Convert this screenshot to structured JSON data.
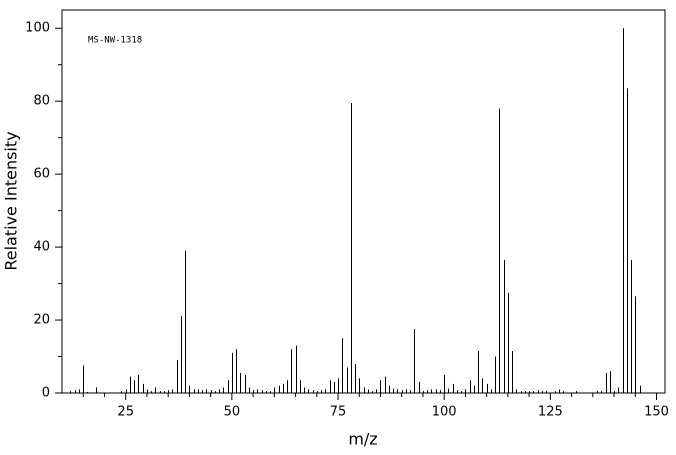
{
  "chart_data": {
    "type": "stem",
    "annotation": "MS-NW-1318",
    "xlabel": "m/z",
    "ylabel": "Relative Intensity",
    "color": "#000000",
    "xlim": [
      10,
      152
    ],
    "ylim": [
      0,
      105
    ],
    "xticks": [
      25,
      50,
      75,
      100,
      125,
      150
    ],
    "xminorticks": [
      15,
      20,
      30,
      35,
      40,
      45,
      55,
      60,
      65,
      70,
      80,
      85,
      90,
      95,
      105,
      110,
      115,
      120,
      130,
      135,
      140,
      145
    ],
    "yticks": [
      0,
      20,
      40,
      60,
      80,
      100
    ],
    "yminorticks": [
      10,
      30,
      50,
      70,
      90
    ],
    "x": [
      12,
      13,
      14,
      15,
      16,
      18,
      24,
      25,
      26,
      27,
      28,
      29,
      30,
      31,
      32,
      33,
      34,
      35,
      36,
      37,
      38,
      39,
      40,
      41,
      42,
      43,
      44,
      45,
      46,
      47,
      48,
      49,
      50,
      51,
      52,
      53,
      54,
      55,
      56,
      57,
      58,
      59,
      60,
      61,
      62,
      63,
      64,
      65,
      66,
      67,
      68,
      69,
      70,
      71,
      72,
      73,
      74,
      75,
      76,
      77,
      78,
      79,
      80,
      81,
      82,
      83,
      84,
      85,
      86,
      87,
      88,
      89,
      90,
      91,
      92,
      93,
      94,
      95,
      96,
      97,
      98,
      99,
      100,
      101,
      102,
      103,
      104,
      105,
      106,
      107,
      108,
      109,
      110,
      111,
      112,
      113,
      114,
      115,
      116,
      117,
      118,
      119,
      120,
      121,
      122,
      123,
      124,
      126,
      127,
      128,
      131,
      136,
      137,
      138,
      139,
      140,
      141,
      142,
      143,
      144,
      145,
      146
    ],
    "values": [
      0.5,
      0.8,
      1,
      7.5,
      0.3,
      1.5,
      0.5,
      1,
      4.5,
      3.5,
      5,
      2.5,
      1,
      0.5,
      1.5,
      0.5,
      0.5,
      0.8,
      1,
      9,
      21,
      39,
      2,
      1,
      1,
      0.8,
      1,
      0.8,
      0.5,
      1,
      1.5,
      3.5,
      11,
      12,
      5.5,
      5,
      1.5,
      0.8,
      1,
      0.8,
      0.5,
      0.5,
      1.5,
      2,
      2.5,
      3.5,
      12,
      13,
      3.5,
      1.5,
      1,
      0.8,
      0.5,
      0.8,
      1,
      3.5,
      3,
      4,
      15,
      7,
      79.5,
      8,
      4,
      1.5,
      1,
      0.5,
      1,
      3.5,
      4.5,
      2,
      1.2,
      1,
      0.8,
      1,
      0.8,
      17.5,
      3,
      0.5,
      0.8,
      1,
      1,
      0.8,
      5,
      1.2,
      2.5,
      0.8,
      0.5,
      1,
      3.5,
      2,
      11.5,
      4,
      2.5,
      1,
      10,
      78,
      36.5,
      27.5,
      11.5,
      1,
      0.5,
      0.5,
      0.5,
      0.5,
      0.8,
      0.5,
      0.5,
      0.5,
      1,
      0.5,
      0.5,
      0.5,
      0.5,
      5.5,
      6,
      0.5,
      1.5,
      100,
      83.5,
      36.5,
      26.5,
      2
    ]
  }
}
